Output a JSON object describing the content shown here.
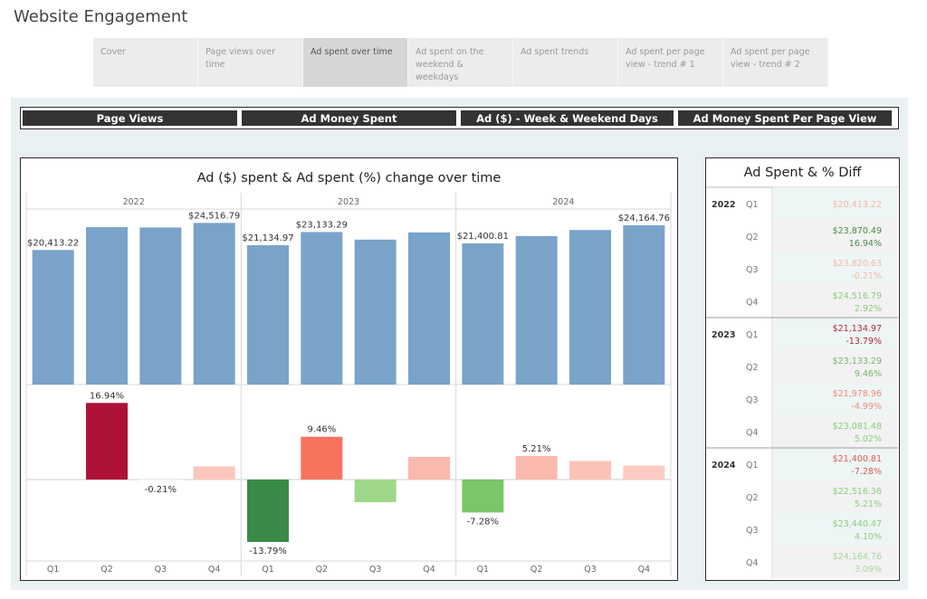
{
  "page": {
    "title": "Website Engagement"
  },
  "tabs": [
    {
      "label": "Cover",
      "active": false
    },
    {
      "label": "Page views over time",
      "active": false
    },
    {
      "label": "Ad spent over time",
      "active": true
    },
    {
      "label": "Ad spent on the weekend & weekdays",
      "active": false
    },
    {
      "label": "Ad spent trends",
      "active": false
    },
    {
      "label": "Ad spent per page view - trend # 1",
      "active": false
    },
    {
      "label": "Ad spent per page view - trend # 2",
      "active": false
    }
  ],
  "nav": [
    {
      "label": "Page Views"
    },
    {
      "label": "Ad Money Spent"
    },
    {
      "label": "Ad ($) - Week & Weekend Days"
    },
    {
      "label": "Ad Money Spent Per Page View"
    }
  ],
  "chart_data": [
    {
      "type": "bar",
      "title": "Ad ($) spent & Ad spent (%) change over time",
      "years": [
        "2022",
        "2023",
        "2024"
      ],
      "quarters": [
        "Q1",
        "Q2",
        "Q3",
        "Q4"
      ],
      "series": [
        {
          "name": "Ad spent ($)",
          "values": [
            20413.22,
            23870.49,
            23820.63,
            24516.79,
            21134.97,
            23133.29,
            21978.96,
            23081.48,
            21400.81,
            22516.36,
            23440.47,
            24164.76
          ]
        },
        {
          "name": "% change",
          "values": [
            null,
            16.94,
            -0.21,
            2.92,
            -13.79,
            9.46,
            -4.99,
            5.02,
            -7.28,
            5.21,
            4.1,
            3.09
          ]
        }
      ],
      "bar_labels": [
        {
          "index": 0,
          "text": "$20,413.22"
        },
        {
          "index": 3,
          "text": "$24,516.79"
        },
        {
          "index": 4,
          "text": "$21,134.97"
        },
        {
          "index": 5,
          "text": "$23,133.29"
        },
        {
          "index": 8,
          "text": "$21,400.81"
        },
        {
          "index": 11,
          "text": "$24,164.76"
        }
      ],
      "pct_labels": [
        {
          "index": 1,
          "text": "16.94%"
        },
        {
          "index": 2,
          "text": "-0.21%"
        },
        {
          "index": 4,
          "text": "-13.79%"
        },
        {
          "index": 5,
          "text": "9.46%"
        },
        {
          "index": 8,
          "text": "-7.28%"
        },
        {
          "index": 9,
          "text": "5.21%"
        }
      ],
      "bar_color": "#7aa3c9",
      "pct_colors": [
        "#ffffff",
        "#ad1236",
        "#ffffff",
        "#fcc6bd",
        "#3a8a47",
        "#f6735d",
        "#9fd88b",
        "#fbb8ad",
        "#7cc56b",
        "#fbb8ad",
        "#fcc2b8",
        "#fdcbc3"
      ]
    },
    {
      "type": "table",
      "title": "Ad Spent & % Diff",
      "rows": [
        {
          "year": "2022",
          "q": "Q1",
          "value": "$20,413.22",
          "pct": "",
          "color": "#f3b9a9"
        },
        {
          "year": "",
          "q": "Q2",
          "value": "$23,870.49",
          "pct": "16.94%",
          "color": "#4a8a4c"
        },
        {
          "year": "",
          "q": "Q3",
          "value": "$23,820.63",
          "pct": "-0.21%",
          "color": "#f3b9a9"
        },
        {
          "year": "",
          "q": "Q4",
          "value": "$24,516.79",
          "pct": "2.92%",
          "color": "#8ccc7d"
        },
        {
          "year": "2023",
          "q": "Q1",
          "value": "$21,134.97",
          "pct": "-13.79%",
          "color": "#b22a3c"
        },
        {
          "year": "",
          "q": "Q2",
          "value": "$23,133.29",
          "pct": "9.46%",
          "color": "#74b867"
        },
        {
          "year": "",
          "q": "Q3",
          "value": "$21,978.96",
          "pct": "-4.99%",
          "color": "#ef8a78"
        },
        {
          "year": "",
          "q": "Q4",
          "value": "$23,081.48",
          "pct": "5.02%",
          "color": "#8ccc7d"
        },
        {
          "year": "2024",
          "q": "Q1",
          "value": "$21,400.81",
          "pct": "-7.28%",
          "color": "#dc5b55"
        },
        {
          "year": "",
          "q": "Q2",
          "value": "$22,516.36",
          "pct": "5.21%",
          "color": "#8ccc7d"
        },
        {
          "year": "",
          "q": "Q3",
          "value": "$23,440.47",
          "pct": "4.10%",
          "color": "#8ccc7d"
        },
        {
          "year": "",
          "q": "Q4",
          "value": "$24,164.76",
          "pct": "3.09%",
          "color": "#a6d79a"
        }
      ]
    }
  ]
}
